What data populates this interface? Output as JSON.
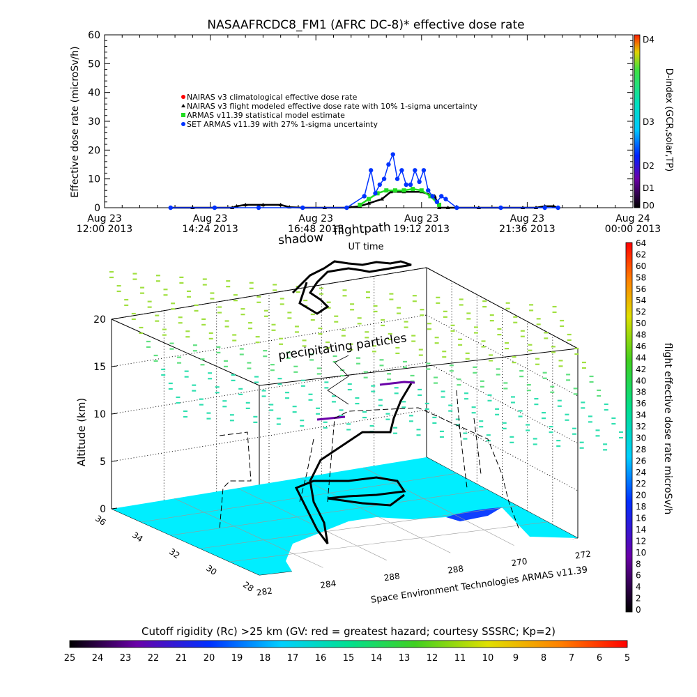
{
  "chart_data": [
    {
      "type": "scatter",
      "title": "NASAAFRCDC8_FM1 (AFRC DC-8)* effective dose rate",
      "ylabel": "Effective dose rate (microSv/h)",
      "xlabel": "UT time",
      "ylim": [
        0,
        60
      ],
      "yticks": [
        "0",
        "10",
        "20",
        "30",
        "40",
        "50",
        "60"
      ],
      "xtick_labels": [
        [
          "Aug 23",
          "12:00 2013"
        ],
        [
          "Aug 23",
          "14:24 2013"
        ],
        [
          "Aug 23",
          "16:48 2013"
        ],
        [
          "Aug 23",
          "19:12 2013"
        ],
        [
          "Aug 23",
          "21:36 2013"
        ],
        [
          "Aug 24",
          "00:00 2013"
        ]
      ],
      "xlim_hours": [
        12.0,
        24.0
      ],
      "legend": [
        {
          "name": "NAIRAS v3 climatological effective dose rate",
          "color": "#ff0000",
          "marker": "circle"
        },
        {
          "name": "NAIRAS v3 flight modeled effective dose rate with 10% 1-sigma uncertainty",
          "color": "#000000",
          "marker": "triangle"
        },
        {
          "name": "ARMAS v11.39 statistical model estimate",
          "color": "#22dd22",
          "marker": "square"
        },
        {
          "name": "SET ARMAS v11.39 with 27% 1-sigma uncertainty",
          "color": "#0033ff",
          "marker": "circle"
        }
      ],
      "series": [
        {
          "name": "NAIRAS v3 flight modeled effective dose rate with 10% 1-sigma uncertainty",
          "color": "#000000",
          "x": [
            13.5,
            14.0,
            14.5,
            14.9,
            15.0,
            15.2,
            15.6,
            16.0,
            16.2,
            16.5,
            17.0,
            17.5,
            17.8,
            18.0,
            18.3,
            18.5,
            18.8,
            19.2,
            19.5,
            19.6,
            19.8,
            20.0,
            20.5,
            21.0,
            21.5,
            21.8,
            22.0,
            22.2,
            22.3
          ],
          "y": [
            0,
            0,
            0,
            0,
            0.5,
            1,
            1,
            1,
            0.2,
            0,
            0,
            0,
            0.5,
            1.5,
            3,
            5.5,
            5.5,
            5.5,
            4,
            0,
            0,
            0,
            0,
            0,
            0,
            0,
            0.5,
            0.5,
            0
          ]
        },
        {
          "name": "ARMAS v11.39 statistical model estimate",
          "color": "#22dd22",
          "x": [
            17.8,
            18.0,
            18.2,
            18.4,
            18.6,
            18.8,
            19.0,
            19.2,
            19.4,
            19.6
          ],
          "y": [
            1,
            3,
            5,
            6,
            6,
            6,
            6.5,
            6,
            4,
            1
          ]
        },
        {
          "name": "SET ARMAS v11.39 with 27% 1-sigma uncertainty",
          "color": "#0033ff",
          "x": [
            13.5,
            14.5,
            15.5,
            16.5,
            17.5,
            17.9,
            18.05,
            18.15,
            18.25,
            18.35,
            18.45,
            18.55,
            18.65,
            18.75,
            18.85,
            18.95,
            19.05,
            19.15,
            19.25,
            19.35,
            19.45,
            19.55,
            19.65,
            19.75,
            20.0,
            21.0,
            22.0,
            22.3
          ],
          "y": [
            0,
            0,
            0,
            0,
            0,
            4,
            13,
            5,
            8,
            10,
            15,
            18.5,
            10,
            13,
            8,
            8,
            13,
            9,
            13,
            6,
            4,
            2,
            4,
            3,
            0,
            0,
            0,
            0
          ]
        }
      ],
      "dindex_colorbar": {
        "title": "D-index (GCR,solar,TP)",
        "labels": [
          "D0",
          "D1",
          "D2",
          "D3",
          "D4"
        ]
      }
    },
    {
      "type": "scatter",
      "zlabel": "Altitude (km)",
      "zticks": [
        "0",
        "5",
        "10",
        "15",
        "20"
      ],
      "lat_ticks": [
        "36",
        "34",
        "32",
        "30",
        "28"
      ],
      "lon_ticks": [
        "282",
        "284",
        "288",
        "288",
        "270",
        "272"
      ],
      "annotations": [
        "flightpath",
        "shadow",
        "precipitating particles"
      ],
      "credit": "Space Environment Technologies ARMAS v11.39",
      "dose_colorbar": {
        "title": "flight effective dose rate microSv/h",
        "labels": [
          "0",
          "2",
          "4",
          "6",
          "8",
          "10",
          "12",
          "14",
          "16",
          "18",
          "20",
          "22",
          "24",
          "26",
          "28",
          "30",
          "32",
          "34",
          "36",
          "38",
          "40",
          "42",
          "44",
          "46",
          "48",
          "50",
          "52",
          "54",
          "56",
          "58",
          "60",
          "62",
          "64"
        ]
      },
      "cutoff_colorbar": {
        "title": "Cutoff rigidity (Rc) >25 km (GV: red = greatest hazard; courtesy SSSRC; Kp=2)",
        "labels": [
          "25",
          "24",
          "23",
          "22",
          "21",
          "20",
          "19",
          "18",
          "17",
          "16",
          "15",
          "14",
          "13",
          "12",
          "11",
          "10",
          "9",
          "8",
          "7",
          "6",
          "5"
        ]
      }
    }
  ]
}
